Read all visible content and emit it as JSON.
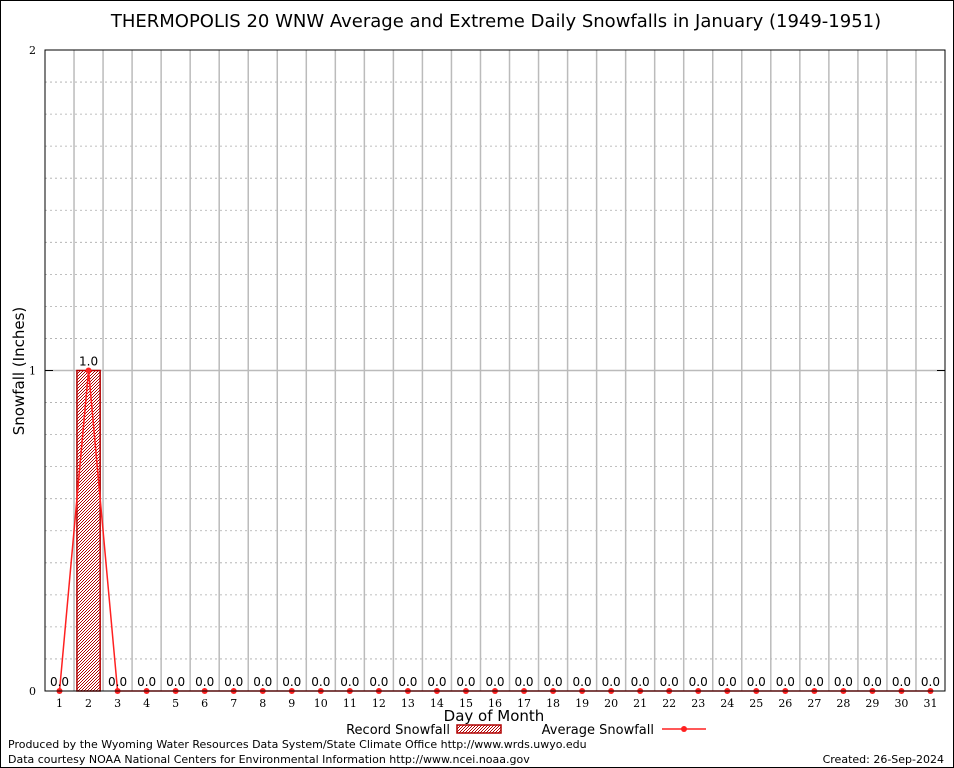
{
  "chart_data": {
    "type": "bar",
    "title": "THERMOPOLIS 20 WNW Average and Extreme Daily Snowfalls in January (1949-1951)",
    "xlabel": "Day of Month",
    "ylabel": "Snowfall (Inches)",
    "ylim": [
      0,
      2
    ],
    "yticks": [
      "0",
      "1",
      "2"
    ],
    "categories": [
      "1",
      "2",
      "3",
      "4",
      "5",
      "6",
      "7",
      "8",
      "9",
      "10",
      "11",
      "12",
      "13",
      "14",
      "15",
      "16",
      "17",
      "18",
      "19",
      "20",
      "21",
      "22",
      "23",
      "24",
      "25",
      "26",
      "27",
      "28",
      "29",
      "30",
      "31"
    ],
    "series": [
      {
        "name": "Record Snowfall",
        "type": "bar",
        "color": "#cc0000",
        "values": [
          0,
          1.0,
          0,
          0,
          0,
          0,
          0,
          0,
          0,
          0,
          0,
          0,
          0,
          0,
          0,
          0,
          0,
          0,
          0,
          0,
          0,
          0,
          0,
          0,
          0,
          0,
          0,
          0,
          0,
          0,
          0
        ]
      },
      {
        "name": "Average Snowfall",
        "type": "line",
        "color": "#ff2020",
        "values": [
          0,
          1.0,
          0,
          0,
          0,
          0,
          0,
          0,
          0,
          0,
          0,
          0,
          0,
          0,
          0,
          0,
          0,
          0,
          0,
          0,
          0,
          0,
          0,
          0,
          0,
          0,
          0,
          0,
          0,
          0,
          0
        ]
      }
    ],
    "data_labels": [
      "0.0",
      "1.0",
      "0.0",
      "0.0",
      "0.0",
      "0.0",
      "0.0",
      "0.0",
      "0.0",
      "0.0",
      "0.0",
      "0.0",
      "0.0",
      "0.0",
      "0.0",
      "0.0",
      "0.0",
      "0.0",
      "0.0",
      "0.0",
      "0.0",
      "0.0",
      "0.0",
      "0.0",
      "0.0",
      "0.0",
      "0.0",
      "0.0",
      "0.0",
      "0.0",
      "0.0"
    ],
    "legend": "bottom-center",
    "grid": true
  },
  "footer": {
    "produced": "Produced by the Wyoming Water Resources Data System/State Climate Office http://www.wrds.uwyo.edu",
    "courtesy": "Data courtesy NOAA National Centers for Environmental Information http://www.ncei.noaa.gov",
    "created": "Created: 26-Sep-2024"
  }
}
